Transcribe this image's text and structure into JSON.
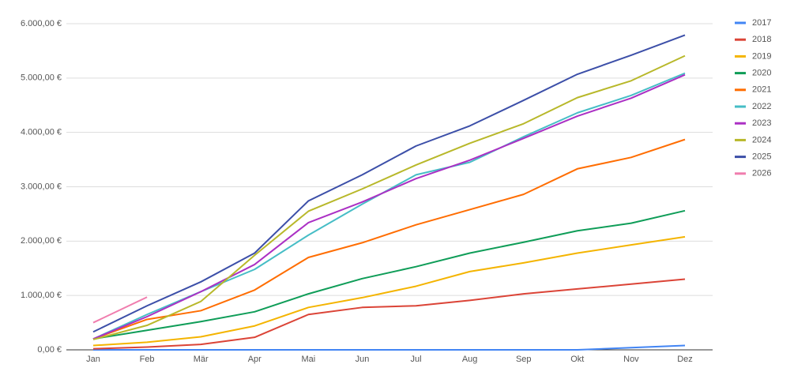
{
  "chart_data": {
    "type": "line",
    "categories": [
      "Jan",
      "Feb",
      "Mär",
      "Apr",
      "Mai",
      "Jun",
      "Jul",
      "Aug",
      "Sep",
      "Okt",
      "Nov",
      "Dez"
    ],
    "ylim": [
      0,
      6000
    ],
    "yticks": [
      {
        "value": 0,
        "label": "0,00 €"
      },
      {
        "value": 1000,
        "label": "1.000,00 €"
      },
      {
        "value": 2000,
        "label": "2.000,00 €"
      },
      {
        "value": 3000,
        "label": "3.000,00 €"
      },
      {
        "value": 4000,
        "label": "4.000,00 €"
      },
      {
        "value": 5000,
        "label": "5.000,00 €"
      },
      {
        "value": 6000,
        "label": "6.000,00 €"
      }
    ],
    "grid": true,
    "legend": "right",
    "series": [
      {
        "name": "2017",
        "color": "#4285f4",
        "values": [
          0,
          0,
          0,
          0,
          0,
          0,
          0,
          0,
          0,
          0,
          40,
          80
        ]
      },
      {
        "name": "2018",
        "color": "#db4437",
        "values": [
          20,
          50,
          100,
          230,
          650,
          780,
          810,
          910,
          1030,
          1120,
          1210,
          1300
        ]
      },
      {
        "name": "2019",
        "color": "#f4b400",
        "values": [
          80,
          140,
          240,
          440,
          780,
          960,
          1170,
          1440,
          1600,
          1780,
          1930,
          2080
        ]
      },
      {
        "name": "2020",
        "color": "#0f9d58",
        "values": [
          200,
          360,
          520,
          700,
          1030,
          1310,
          1530,
          1780,
          1980,
          2190,
          2330,
          2560
        ]
      },
      {
        "name": "2021",
        "color": "#ff6d01",
        "values": [
          200,
          560,
          720,
          1100,
          1700,
          1970,
          2300,
          2580,
          2860,
          3330,
          3540,
          3870
        ]
      },
      {
        "name": "2022",
        "color": "#46bdc6",
        "values": [
          200,
          650,
          1070,
          1480,
          2110,
          2680,
          3220,
          3450,
          3920,
          4360,
          4680,
          5090
        ]
      },
      {
        "name": "2023",
        "color": "#ab30c4",
        "values": [
          200,
          610,
          1070,
          1570,
          2340,
          2720,
          3150,
          3490,
          3890,
          4300,
          4630,
          5060
        ]
      },
      {
        "name": "2024",
        "color": "#b8b82a",
        "values": [
          190,
          450,
          890,
          1740,
          2550,
          2960,
          3400,
          3800,
          4160,
          4640,
          4950,
          5410
        ]
      },
      {
        "name": "2025",
        "color": "#3c4fa8",
        "values": [
          330,
          810,
          1250,
          1780,
          2740,
          3220,
          3750,
          4120,
          4590,
          5070,
          5420,
          5790
        ]
      },
      {
        "name": "2026",
        "color": "#f07dae",
        "values": [
          500,
          970,
          null,
          null,
          null,
          null,
          null,
          null,
          null,
          null,
          null,
          null
        ]
      }
    ]
  }
}
